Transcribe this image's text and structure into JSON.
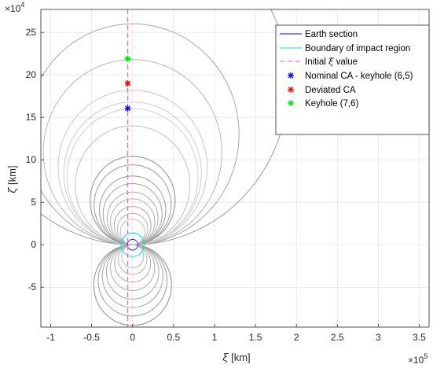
{
  "chart_data": {
    "type": "scatter",
    "title": "",
    "xlabel": {
      "symbol": "ξ",
      "unit": " [km]"
    },
    "ylabel": {
      "symbol": "ζ",
      "unit": " [km]"
    },
    "x_exponent": {
      "base": "×10",
      "power": "5"
    },
    "y_exponent": {
      "base": "×10",
      "power": "4"
    },
    "xlim": [
      -112000,
      362000
    ],
    "ylim": [
      -97000,
      277000
    ],
    "xticks": [
      -100000,
      -50000,
      0,
      50000,
      100000,
      150000,
      200000,
      250000,
      300000,
      350000
    ],
    "xtick_labels": [
      "-1",
      "-0.5",
      "0",
      "0.5",
      "1",
      "1.5",
      "2",
      "2.5",
      "3",
      "3.5"
    ],
    "yticks": [
      -50000,
      0,
      50000,
      100000,
      150000,
      200000,
      250000
    ],
    "ytick_labels": [
      "-5",
      "0",
      "5",
      "10",
      "15",
      "20",
      "25"
    ],
    "grid": true,
    "legend_position": "top-right",
    "initial_xi": -6000,
    "earth_radius": 6371,
    "impact_region_radius": 14000,
    "points": [
      {
        "name": "Nominal CA - keyhole (6,5)",
        "x": -6000,
        "y": 160500,
        "color": "#0000ff"
      },
      {
        "name": "Deviated CA",
        "x": -6000,
        "y": 190000,
        "color": "#ff0000"
      },
      {
        "name": "Keyhole (7,6)",
        "x": -6000,
        "y": 219000,
        "color": "#00e000"
      }
    ],
    "upper_circles": [
      {
        "center": 190000,
        "radius": 190000,
        "color": "#999999"
      },
      {
        "center": 130000,
        "radius": 130000,
        "color": "#a6a6a6"
      },
      {
        "center": 109000,
        "radius": 109000,
        "color": "#b8b8b8"
      },
      {
        "center": 91000,
        "radius": 91000,
        "color": "#c8c8c8"
      },
      {
        "center": 84000,
        "radius": 84000,
        "color": "#cccccc"
      },
      {
        "center": 80000,
        "radius": 80000,
        "color": "#d0d0d0"
      },
      {
        "center": 70000,
        "radius": 70000,
        "color": "#c0c0c0"
      },
      {
        "center": 52000,
        "radius": 52000,
        "color": "#8c8c8c"
      },
      {
        "center": 47000,
        "radius": 47000,
        "color": "#9a9a9a"
      },
      {
        "center": 40500,
        "radius": 40500,
        "color": "#999999"
      },
      {
        "center": 36000,
        "radius": 36000,
        "color": "#a0a0a0"
      },
      {
        "center": 31000,
        "radius": 31000,
        "color": "#aaaaaa"
      },
      {
        "center": 27000,
        "radius": 27000,
        "color": "#b0b0b0"
      },
      {
        "center": 22500,
        "radius": 22500,
        "color": "#a8a8a8"
      },
      {
        "center": 18500,
        "radius": 18500,
        "color": "#b4b4b4"
      },
      {
        "center": 15000,
        "radius": 15000,
        "color": "#bbbbbb"
      }
    ],
    "lower_circles": [
      {
        "center": -47500,
        "radius": 47500,
        "color": "#8c8c8c"
      },
      {
        "center": -42000,
        "radius": 42000,
        "color": "#999999"
      },
      {
        "center": -37000,
        "radius": 37000,
        "color": "#a0a0a0"
      },
      {
        "center": -32000,
        "radius": 32000,
        "color": "#a8a8a8"
      },
      {
        "center": -27000,
        "radius": 27000,
        "color": "#b0b0b0"
      },
      {
        "center": -22000,
        "radius": 22000,
        "color": "#aaaaaa"
      },
      {
        "center": -17500,
        "radius": 17500,
        "color": "#b4b4b4"
      },
      {
        "center": -13500,
        "radius": 13500,
        "color": "#bbbbbb"
      }
    ],
    "legend": [
      {
        "label": "Earth section",
        "kind": "line",
        "color": "#0000ff"
      },
      {
        "label": "Boundary of impact region",
        "kind": "line",
        "color": "#00e0e0"
      },
      {
        "label_prefix": "Initial ",
        "label_symbol": "ξ",
        "label_suffix": " value",
        "kind": "dash",
        "color": "#e060e0"
      },
      {
        "label": "Nominal CA - keyhole (6,5)",
        "kind": "marker",
        "color": "#0000ff"
      },
      {
        "label": "Deviated CA",
        "kind": "marker",
        "color": "#ff0000"
      },
      {
        "label": "Keyhole (7,6)",
        "kind": "marker",
        "color": "#00e000"
      }
    ]
  }
}
